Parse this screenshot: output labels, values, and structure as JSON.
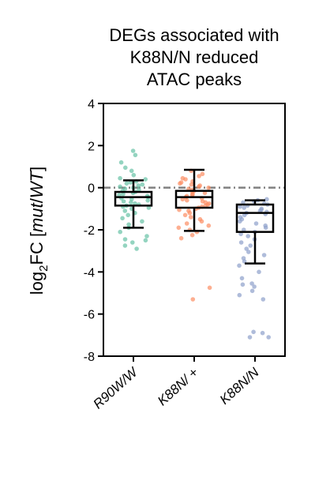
{
  "chart_data": {
    "type": "box",
    "title_lines": [
      "DEGs associated with",
      "K88N/N reduced",
      "ATAC peaks"
    ],
    "ylabel": {
      "prefix": "log",
      "subscript": "2",
      "mid": "FC [",
      "italic": "mut",
      "sep": "/",
      "italic2": "WT",
      "suffix": "]"
    },
    "ylim": [
      -8,
      4
    ],
    "yticks": [
      4,
      2,
      0,
      -2,
      -4,
      -6,
      -8
    ],
    "reference_line": {
      "y": 0,
      "style": "dash-dot",
      "color": "#808080"
    },
    "categories": [
      "R90W/W",
      "K88N/ +",
      "K88N/N"
    ],
    "series": [
      {
        "color": "#66c2a5",
        "box": {
          "q1": -0.85,
          "median": -0.45,
          "q3": -0.2,
          "whisker_low": -1.9,
          "whisker_high": 0.35
        },
        "points": [
          1.75,
          1.55,
          1.2,
          0.95,
          0.8,
          0.6,
          0.45,
          0.4,
          0.3,
          0.25,
          0.2,
          0.15,
          0.1,
          0.05,
          0.0,
          -0.05,
          -0.1,
          -0.15,
          -0.2,
          -0.25,
          -0.3,
          -0.35,
          -0.4,
          -0.45,
          -0.5,
          -0.55,
          -0.6,
          -0.65,
          -0.7,
          -0.75,
          -0.8,
          -0.85,
          -0.9,
          -0.95,
          -1.0,
          -1.1,
          -1.2,
          -1.3,
          -1.45,
          -1.6,
          -1.75,
          -1.9,
          -2.1,
          -2.3,
          -2.45,
          -2.5,
          -2.6,
          -2.75,
          -2.9
        ]
      },
      {
        "color": "#fc8d62",
        "box": {
          "q1": -0.95,
          "median": -0.45,
          "q3": -0.15,
          "whisker_low": -2.05,
          "whisker_high": 0.85
        },
        "points": [
          0.8,
          0.65,
          0.55,
          0.45,
          0.4,
          0.3,
          0.25,
          0.2,
          0.15,
          0.1,
          0.05,
          0.0,
          -0.05,
          -0.1,
          -0.15,
          -0.2,
          -0.25,
          -0.3,
          -0.35,
          -0.4,
          -0.45,
          -0.5,
          -0.55,
          -0.6,
          -0.65,
          -0.7,
          -0.75,
          -0.8,
          -0.85,
          -0.9,
          -0.95,
          -1.0,
          -1.05,
          -1.1,
          -1.2,
          -1.3,
          -1.4,
          -1.5,
          -1.6,
          -1.7,
          -1.8,
          -1.9,
          -2.0,
          -2.1,
          -2.25,
          -2.4,
          -4.75,
          -5.3
        ]
      },
      {
        "color": "#8da0cb",
        "box": {
          "q1": -2.1,
          "median": -1.2,
          "q3": -0.8,
          "whisker_low": -3.6,
          "whisker_high": -0.6
        },
        "points": [
          -0.55,
          -0.6,
          -0.65,
          -0.7,
          -0.75,
          -0.8,
          -0.85,
          -0.9,
          -0.95,
          -1.0,
          -1.05,
          -1.1,
          -1.15,
          -1.2,
          -1.25,
          -1.3,
          -1.4,
          -1.5,
          -1.6,
          -1.7,
          -1.8,
          -1.9,
          -2.0,
          -2.1,
          -2.2,
          -2.3,
          -2.45,
          -2.6,
          -2.75,
          -2.9,
          -3.05,
          -3.2,
          -3.35,
          -3.5,
          -3.7,
          -4.0,
          -4.3,
          -4.55,
          -4.6,
          -4.7,
          -4.9,
          -5.1,
          -5.3,
          -6.85,
          -6.9,
          -7.1,
          -7.1
        ]
      }
    ]
  }
}
